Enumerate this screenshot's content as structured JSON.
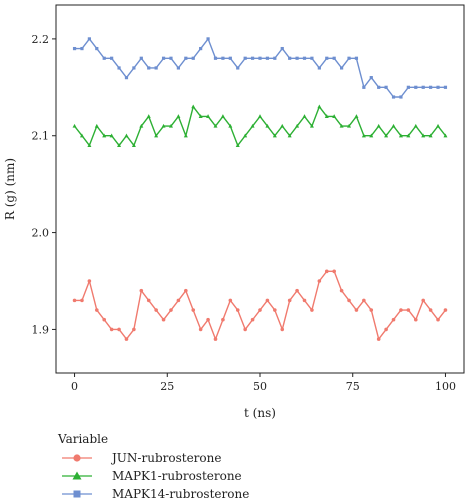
{
  "chart_data": {
    "type": "line",
    "xlabel": "t (ns)",
    "ylabel": "R (g) (nm)",
    "xlim": [
      -5,
      105
    ],
    "ylim": [
      1.855,
      2.235
    ],
    "xticks": [
      0,
      25,
      50,
      75,
      100
    ],
    "yticks": [
      1.9,
      2.0,
      2.1,
      2.2
    ],
    "xtick_labels": [
      "0",
      "25",
      "50",
      "75",
      "100"
    ],
    "ytick_labels": [
      "1.9",
      "2.0",
      "2.1",
      "2.2"
    ],
    "grid": false,
    "legend": {
      "title": "Variable",
      "position": "bottom-left"
    },
    "series": [
      {
        "name": "JUN-rubrosterone",
        "color": "#F07A6E",
        "marker": "circle",
        "x": [
          0,
          2,
          4,
          6,
          8,
          10,
          12,
          14,
          16,
          18,
          20,
          22,
          24,
          26,
          28,
          30,
          32,
          34,
          36,
          38,
          40,
          42,
          44,
          46,
          48,
          50,
          52,
          54,
          56,
          58,
          60,
          62,
          64,
          66,
          68,
          70,
          72,
          74,
          76,
          78,
          80,
          82,
          84,
          86,
          88,
          90,
          92,
          94,
          96,
          98,
          100
        ],
        "y": [
          1.93,
          1.93,
          1.95,
          1.92,
          1.91,
          1.9,
          1.9,
          1.89,
          1.9,
          1.94,
          1.93,
          1.92,
          1.91,
          1.92,
          1.93,
          1.94,
          1.92,
          1.9,
          1.91,
          1.89,
          1.91,
          1.93,
          1.92,
          1.9,
          1.91,
          1.92,
          1.93,
          1.92,
          1.9,
          1.93,
          1.94,
          1.93,
          1.92,
          1.95,
          1.96,
          1.96,
          1.94,
          1.93,
          1.92,
          1.93,
          1.92,
          1.89,
          1.9,
          1.91,
          1.92,
          1.92,
          1.91,
          1.93,
          1.92,
          1.91,
          1.92
        ]
      },
      {
        "name": "MAPK1-rubrosterone",
        "color": "#2DB034",
        "marker": "triangle",
        "x": [
          0,
          2,
          4,
          6,
          8,
          10,
          12,
          14,
          16,
          18,
          20,
          22,
          24,
          26,
          28,
          30,
          32,
          34,
          36,
          38,
          40,
          42,
          44,
          46,
          48,
          50,
          52,
          54,
          56,
          58,
          60,
          62,
          64,
          66,
          68,
          70,
          72,
          74,
          76,
          78,
          80,
          82,
          84,
          86,
          88,
          90,
          92,
          94,
          96,
          98,
          100
        ],
        "y": [
          2.11,
          2.1,
          2.09,
          2.11,
          2.1,
          2.1,
          2.09,
          2.1,
          2.09,
          2.11,
          2.12,
          2.1,
          2.11,
          2.11,
          2.12,
          2.1,
          2.13,
          2.12,
          2.12,
          2.11,
          2.12,
          2.11,
          2.09,
          2.1,
          2.11,
          2.12,
          2.11,
          2.1,
          2.11,
          2.1,
          2.11,
          2.12,
          2.11,
          2.13,
          2.12,
          2.12,
          2.11,
          2.11,
          2.12,
          2.1,
          2.1,
          2.11,
          2.1,
          2.11,
          2.1,
          2.1,
          2.11,
          2.1,
          2.1,
          2.11,
          2.1
        ]
      },
      {
        "name": "MAPK14-rubrosterone",
        "color": "#6E8FD0",
        "marker": "square",
        "x": [
          0,
          2,
          4,
          6,
          8,
          10,
          12,
          14,
          16,
          18,
          20,
          22,
          24,
          26,
          28,
          30,
          32,
          34,
          36,
          38,
          40,
          42,
          44,
          46,
          48,
          50,
          52,
          54,
          56,
          58,
          60,
          62,
          64,
          66,
          68,
          70,
          72,
          74,
          76,
          78,
          80,
          82,
          84,
          86,
          88,
          90,
          92,
          94,
          96,
          98,
          100
        ],
        "y": [
          2.19,
          2.19,
          2.2,
          2.19,
          2.18,
          2.18,
          2.17,
          2.16,
          2.17,
          2.18,
          2.17,
          2.17,
          2.18,
          2.18,
          2.17,
          2.18,
          2.18,
          2.19,
          2.2,
          2.18,
          2.18,
          2.18,
          2.17,
          2.18,
          2.18,
          2.18,
          2.18,
          2.18,
          2.19,
          2.18,
          2.18,
          2.18,
          2.18,
          2.17,
          2.18,
          2.18,
          2.17,
          2.18,
          2.18,
          2.15,
          2.16,
          2.15,
          2.15,
          2.14,
          2.14,
          2.15,
          2.15,
          2.15,
          2.15,
          2.15,
          2.15
        ]
      }
    ]
  }
}
